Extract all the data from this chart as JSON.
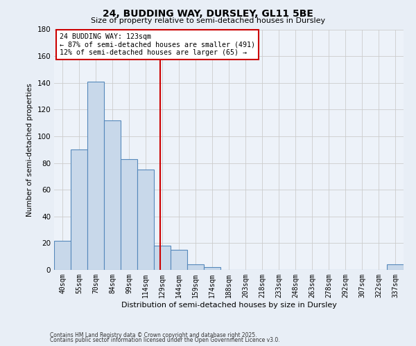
{
  "title": "24, BUDDING WAY, DURSLEY, GL11 5BE",
  "subtitle": "Size of property relative to semi-detached houses in Dursley",
  "xlabel": "Distribution of semi-detached houses by size in Dursley",
  "ylabel": "Number of semi-detached properties",
  "bar_labels": [
    "40sqm",
    "55sqm",
    "70sqm",
    "84sqm",
    "99sqm",
    "114sqm",
    "129sqm",
    "144sqm",
    "159sqm",
    "174sqm",
    "188sqm",
    "203sqm",
    "218sqm",
    "233sqm",
    "248sqm",
    "263sqm",
    "278sqm",
    "292sqm",
    "307sqm",
    "322sqm",
    "337sqm"
  ],
  "bar_values": [
    22,
    90,
    141,
    112,
    83,
    75,
    18,
    15,
    4,
    2,
    0,
    0,
    0,
    0,
    0,
    0,
    0,
    0,
    0,
    0,
    4
  ],
  "bar_color": "#c8d8ea",
  "bar_edge_color": "#5588bb",
  "vline_x": 5.87,
  "vline_color": "#cc0000",
  "annotation_title": "24 BUDDING WAY: 123sqm",
  "annotation_line1": "← 87% of semi-detached houses are smaller (491)",
  "annotation_line2": "12% of semi-detached houses are larger (65) →",
  "annotation_box_color": "#ffffff",
  "annotation_box_edge_color": "#cc0000",
  "ylim": [
    0,
    180
  ],
  "yticks": [
    0,
    20,
    40,
    60,
    80,
    100,
    120,
    140,
    160,
    180
  ],
  "footer1": "Contains HM Land Registry data © Crown copyright and database right 2025.",
  "footer2": "Contains public sector information licensed under the Open Government Licence v3.0.",
  "bg_color": "#e8eef6",
  "plot_bg_color": "#edf2f9"
}
